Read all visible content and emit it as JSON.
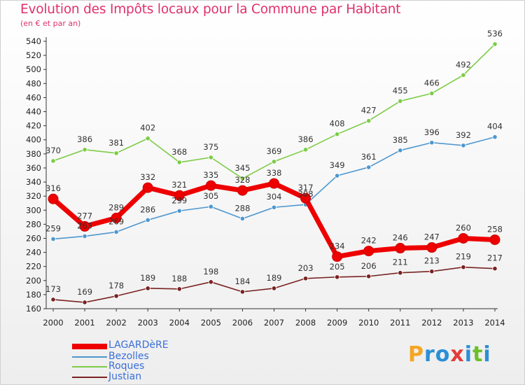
{
  "header": {
    "title": "Evolution des Impôts locaux pour la Commune par Habitant",
    "subtitle": "(en € et par an)"
  },
  "logo": {
    "text": "Proxiti",
    "letter_colors": [
      "#f5a623",
      "#2b8fd6",
      "#2b8fd6",
      "#e23b3b",
      "#2b8fd6",
      "#6cbf2a",
      "#2b8fd6"
    ]
  },
  "chart_data": {
    "type": "line",
    "title": "Evolution des Impôts locaux pour la Commune par Habitant",
    "subtitle": "(en € et par an)",
    "x": [
      "2000",
      "2001",
      "2002",
      "2003",
      "2004",
      "2005",
      "2006",
      "2007",
      "2008",
      "2009",
      "2010",
      "2011",
      "2012",
      "2013",
      "2014"
    ],
    "ylim": [
      160,
      540
    ],
    "yticks": [
      160,
      180,
      200,
      220,
      240,
      260,
      280,
      300,
      320,
      340,
      360,
      380,
      400,
      420,
      440,
      460,
      480,
      500,
      520,
      540
    ],
    "grid": false,
    "legend_position": "bottom-left",
    "series": [
      {
        "name": "LAGARDèRE",
        "color": "#ee0000",
        "values": [
          316,
          277,
          289,
          332,
          321,
          335,
          328,
          338,
          317,
          234,
          242,
          246,
          247,
          260,
          258
        ]
      },
      {
        "name": "Bezolles",
        "color": "#4d97cf",
        "values": [
          259,
          263,
          269,
          286,
          299,
          305,
          288,
          304,
          308,
          349,
          361,
          385,
          396,
          392,
          404
        ]
      },
      {
        "name": "Roques",
        "color": "#7dcc45",
        "values": [
          370,
          386,
          381,
          402,
          368,
          375,
          345,
          369,
          386,
          408,
          427,
          455,
          466,
          492,
          536
        ]
      },
      {
        "name": "Justian",
        "color": "#7a2222",
        "values": [
          173,
          169,
          178,
          189,
          188,
          198,
          184,
          189,
          203,
          205,
          206,
          211,
          213,
          219,
          217
        ]
      }
    ],
    "data_labels": {
      "LAGARDèRE": [
        "316",
        "277",
        "289",
        "332",
        "321",
        "335",
        "328",
        "338",
        "317",
        "234",
        "242",
        "246",
        "247",
        "260",
        "258"
      ],
      "Bezolles": [
        "259",
        "263",
        "269",
        "286",
        "299",
        "305",
        "288",
        "304",
        "308",
        "349",
        "361",
        "385",
        "396",
        "392",
        "404"
      ],
      "Roques": [
        "370",
        "386",
        "381",
        "402",
        "368",
        "375",
        "345",
        "369",
        "386",
        "408",
        "427",
        "455",
        "466",
        "492",
        "536"
      ],
      "Justian": [
        "173",
        "169",
        "178",
        "189",
        "188",
        "198",
        "184",
        "189",
        "203",
        "205",
        "206",
        "211",
        "213",
        "219",
        "217"
      ]
    }
  }
}
